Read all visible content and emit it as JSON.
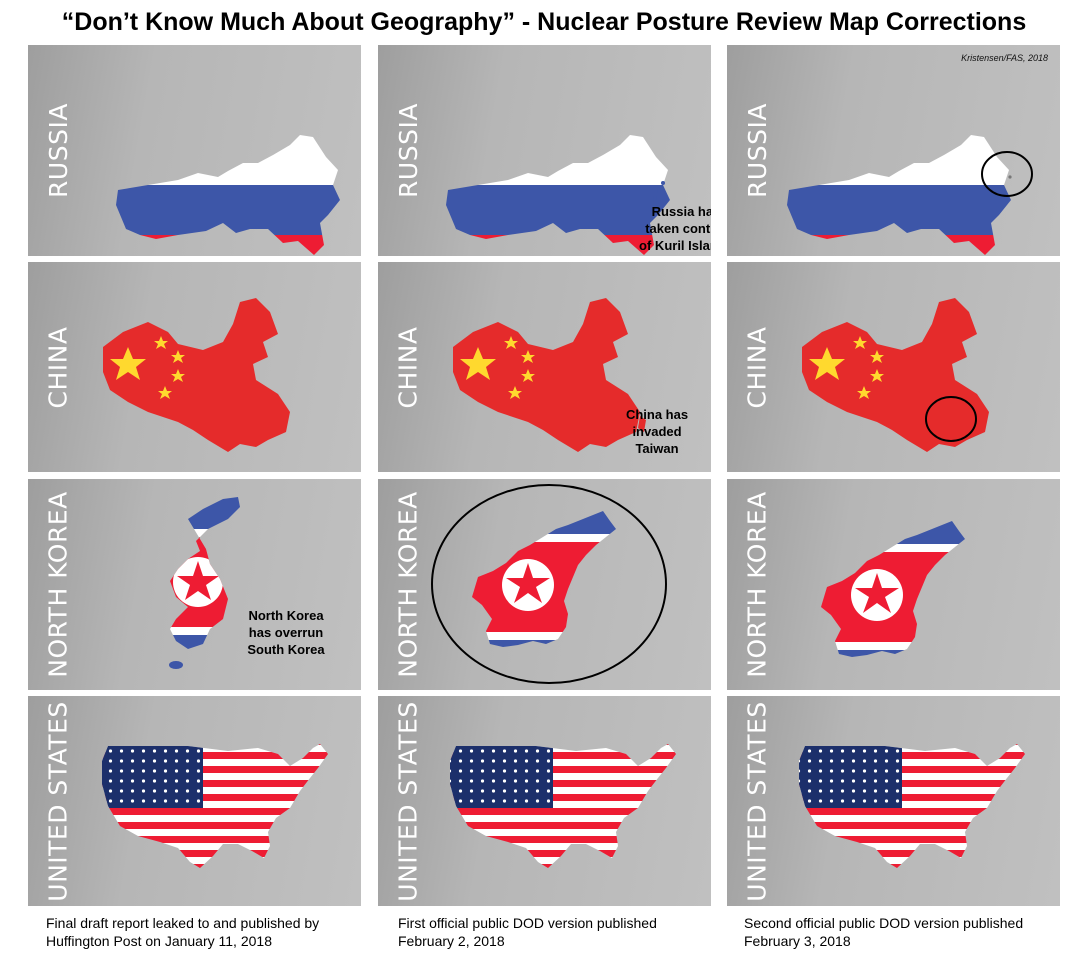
{
  "title": "“Don’t Know Much About Geography” - Nuclear Posture Review Map Corrections",
  "credit": "Kristensen/FAS, 2018",
  "rows": [
    "RUSSIA",
    "CHINA",
    "NORTH KOREA",
    "UNITED STATES"
  ],
  "notes": {
    "russia": [
      "Russia has",
      "taken control",
      "of Kuril Islands"
    ],
    "china": [
      "China has",
      "invaded",
      "Taiwan"
    ],
    "north_korea": [
      "North Korea",
      "has overrun",
      "South Korea"
    ]
  },
  "captions": [
    {
      "line1": "Final draft report leaked to and published by",
      "line2": "Huffington Post on January 11, 2018"
    },
    {
      "line1": "First official public DOD version published",
      "line2": "February 2, 2018"
    },
    {
      "line1": "Second official public DOD version published",
      "line2": "February 3, 2018"
    }
  ],
  "colors": {
    "flag_white": "#ffffff",
    "flag_blue": "#3d56a8",
    "flag_red": "#ee1c33",
    "china_red": "#e52b2b",
    "china_star": "#ffd92e",
    "us_blue": "#1c2f6b",
    "circle": "#000000"
  }
}
